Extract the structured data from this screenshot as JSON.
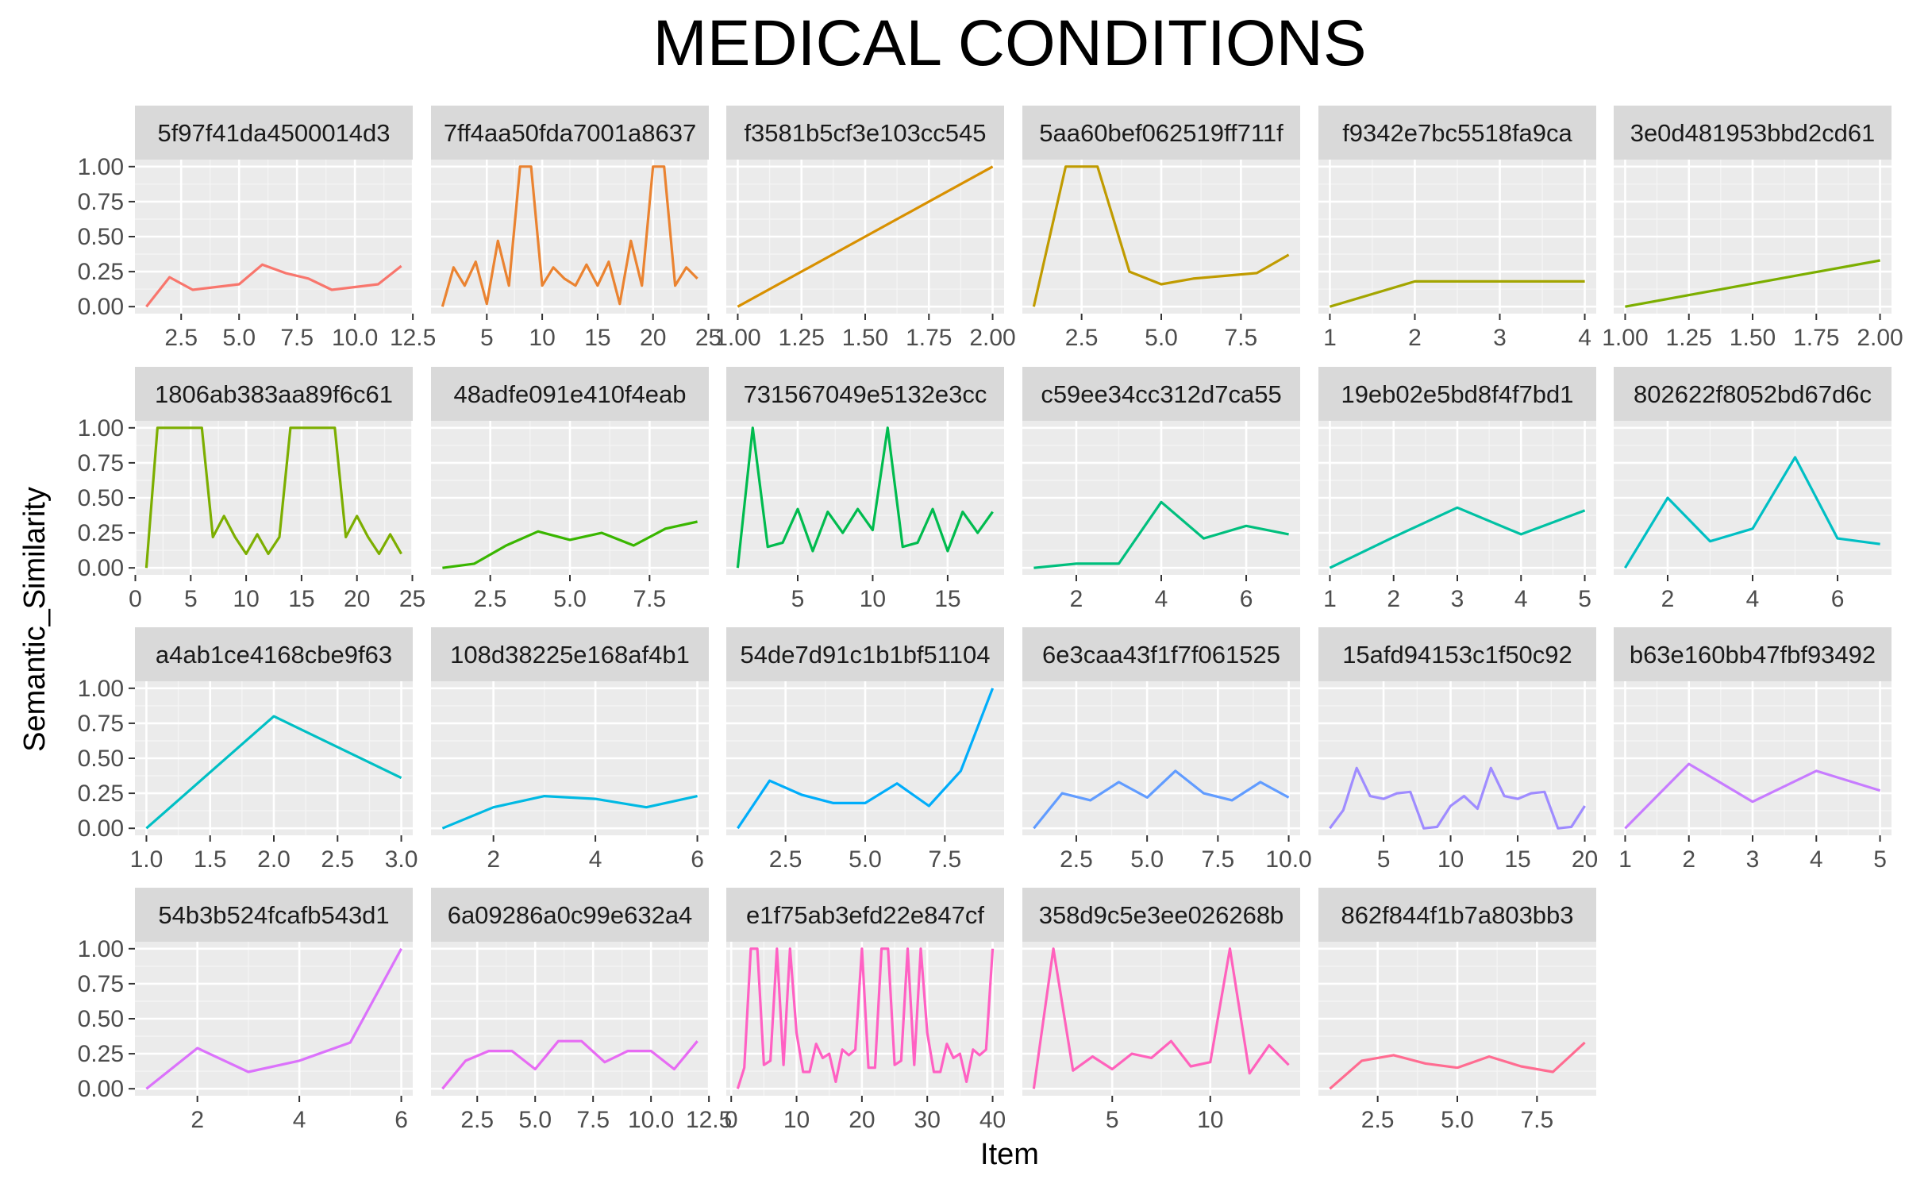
{
  "chart_data": {
    "type": "line",
    "title": "MEDICAL CONDITIONS",
    "xlabel": "Item",
    "ylabel": "Semantic_Similarity",
    "grid": true,
    "legend": "none",
    "y_ticks": [
      0,
      0.25,
      0.5,
      0.75,
      1.0
    ],
    "y_tick_labels": [
      "0.00",
      "0.25",
      "0.50",
      "0.75",
      "1.00"
    ],
    "ylim": [
      0,
      1.0
    ],
    "panels": [
      {
        "label": "5f97f41da4500014d3",
        "color": "#F8766D",
        "xlim": [
          1,
          12
        ],
        "xticks": [
          2.5,
          5,
          7.5,
          10,
          12.5
        ],
        "xtick_labels": [
          "2.5",
          "5.0",
          "7.5",
          "10.0",
          "12.5"
        ],
        "x": [
          1,
          2,
          3,
          4,
          5,
          6,
          7,
          8,
          9,
          10,
          11,
          12
        ],
        "y": [
          0.0,
          0.21,
          0.12,
          0.14,
          0.16,
          0.3,
          0.24,
          0.2,
          0.12,
          0.14,
          0.16,
          0.29
        ]
      },
      {
        "label": "7ff4aa50fda7001a8637",
        "color": "#EA8331",
        "xlim": [
          1,
          24
        ],
        "xticks": [
          5,
          10,
          15,
          20,
          25
        ],
        "xtick_labels": [
          "5",
          "10",
          "15",
          "20",
          "25"
        ],
        "x": [
          1,
          2,
          3,
          4,
          5,
          6,
          7,
          8,
          9,
          10,
          11,
          12,
          13,
          14,
          15,
          16,
          17,
          18,
          19,
          20,
          21,
          22,
          23,
          24
        ],
        "y": [
          0.0,
          0.28,
          0.15,
          0.32,
          0.02,
          0.47,
          0.15,
          1.0,
          1.0,
          0.15,
          0.28,
          0.2,
          0.15,
          0.3,
          0.15,
          0.32,
          0.02,
          0.47,
          0.15,
          1.0,
          1.0,
          0.15,
          0.28,
          0.2
        ]
      },
      {
        "label": "f3581b5cf3e103cc545",
        "color": "#D89000",
        "xlim": [
          1,
          2
        ],
        "xticks": [
          1,
          1.25,
          1.5,
          1.75,
          2
        ],
        "xtick_labels": [
          "1.00",
          "1.25",
          "1.50",
          "1.75",
          "2.00"
        ],
        "x": [
          1,
          2
        ],
        "y": [
          0.0,
          1.0
        ]
      },
      {
        "label": "5aa60bef062519ff711f",
        "color": "#C09B00",
        "xlim": [
          1,
          9
        ],
        "xticks": [
          2.5,
          5,
          7.5
        ],
        "xtick_labels": [
          "2.5",
          "5.0",
          "7.5"
        ],
        "x": [
          1,
          2,
          3,
          4,
          5,
          6,
          7,
          8,
          9
        ],
        "y": [
          0.0,
          1.0,
          1.0,
          0.25,
          0.16,
          0.2,
          0.22,
          0.24,
          0.37
        ]
      },
      {
        "label": "f9342e7bc5518fa9ca",
        "color": "#A3A500",
        "xlim": [
          1,
          4
        ],
        "xticks": [
          1,
          2,
          3,
          4
        ],
        "xtick_labels": [
          "1",
          "2",
          "3",
          "4"
        ],
        "x": [
          1,
          2,
          3,
          4
        ],
        "y": [
          0.0,
          0.18,
          0.18,
          0.18
        ]
      },
      {
        "label": "3e0d481953bbd2cd61",
        "color": "#7CAE00",
        "xlim": [
          1,
          2
        ],
        "xticks": [
          1,
          1.25,
          1.5,
          1.75,
          2
        ],
        "xtick_labels": [
          "1.00",
          "1.25",
          "1.50",
          "1.75",
          "2.00"
        ],
        "x": [
          1,
          2
        ],
        "y": [
          0.0,
          0.33
        ]
      },
      {
        "label": "1806ab383aa89f6c61",
        "color": "#7CAE00",
        "xlim": [
          1,
          24
        ],
        "xticks": [
          0,
          5,
          10,
          15,
          20,
          25
        ],
        "xtick_labels": [
          "0",
          "5",
          "10",
          "15",
          "20",
          "25"
        ],
        "x": [
          1,
          2,
          3,
          4,
          5,
          6,
          7,
          8,
          9,
          10,
          11,
          12,
          13,
          14,
          15,
          16,
          17,
          18,
          19,
          20,
          21,
          22,
          23,
          24
        ],
        "y": [
          0.0,
          1.0,
          1.0,
          1.0,
          1.0,
          1.0,
          0.22,
          0.37,
          0.22,
          0.1,
          0.24,
          0.1,
          0.22,
          1.0,
          1.0,
          1.0,
          1.0,
          1.0,
          0.22,
          0.37,
          0.22,
          0.1,
          0.24,
          0.1
        ]
      },
      {
        "label": "48adfe091e410f4eab",
        "color": "#39B600",
        "xlim": [
          1,
          9
        ],
        "xticks": [
          2.5,
          5,
          7.5
        ],
        "xtick_labels": [
          "2.5",
          "5.0",
          "7.5"
        ],
        "x": [
          1,
          2,
          3,
          4,
          5,
          6,
          7,
          8,
          9
        ],
        "y": [
          0.0,
          0.03,
          0.16,
          0.26,
          0.2,
          0.25,
          0.16,
          0.28,
          0.33
        ]
      },
      {
        "label": "731567049e5132e3cc",
        "color": "#00BB4E",
        "xlim": [
          1,
          18
        ],
        "xticks": [
          5,
          10,
          15
        ],
        "xtick_labels": [
          "5",
          "10",
          "15"
        ],
        "x": [
          1,
          2,
          3,
          4,
          5,
          6,
          7,
          8,
          9,
          10,
          11,
          12,
          13,
          14,
          15,
          16,
          17,
          18
        ],
        "y": [
          0.0,
          1.0,
          0.15,
          0.18,
          0.42,
          0.12,
          0.4,
          0.25,
          0.42,
          0.27,
          1.0,
          0.15,
          0.18,
          0.42,
          0.12,
          0.4,
          0.25,
          0.4
        ]
      },
      {
        "label": "c59ee34cc312d7ca55",
        "color": "#00BF7D",
        "xlim": [
          1,
          7
        ],
        "xticks": [
          2,
          4,
          6
        ],
        "xtick_labels": [
          "2",
          "4",
          "6"
        ],
        "x": [
          1,
          2,
          3,
          4,
          5,
          6,
          7
        ],
        "y": [
          0.0,
          0.03,
          0.03,
          0.47,
          0.21,
          0.3,
          0.24
        ]
      },
      {
        "label": "19eb02e5bd8f4f7bd1",
        "color": "#00C1A3",
        "xlim": [
          1,
          5
        ],
        "xticks": [
          1,
          2,
          3,
          4,
          5
        ],
        "xtick_labels": [
          "1",
          "2",
          "3",
          "4",
          "5"
        ],
        "x": [
          1,
          2,
          3,
          4,
          5
        ],
        "y": [
          0.0,
          0.22,
          0.43,
          0.24,
          0.41
        ]
      },
      {
        "label": "802622f8052bd67d6c",
        "color": "#00BFC4",
        "xlim": [
          1,
          7
        ],
        "xticks": [
          2,
          4,
          6
        ],
        "xtick_labels": [
          "2",
          "4",
          "6"
        ],
        "x": [
          1,
          2,
          3,
          4,
          5,
          6,
          7
        ],
        "y": [
          0.0,
          0.5,
          0.19,
          0.28,
          0.79,
          0.21,
          0.17
        ]
      },
      {
        "label": "a4ab1ce4168cbe9f63",
        "color": "#00BFC4",
        "xlim": [
          1,
          3
        ],
        "xticks": [
          1,
          1.5,
          2,
          2.5,
          3
        ],
        "xtick_labels": [
          "1.0",
          "1.5",
          "2.0",
          "2.5",
          "3.0"
        ],
        "x": [
          1,
          2,
          3
        ],
        "y": [
          0.0,
          0.8,
          0.36
        ]
      },
      {
        "label": "108d38225e168af4b1",
        "color": "#00B9E3",
        "xlim": [
          1,
          6
        ],
        "xticks": [
          2,
          4,
          6
        ],
        "xtick_labels": [
          "2",
          "4",
          "6"
        ],
        "x": [
          1,
          2,
          3,
          4,
          5,
          6
        ],
        "y": [
          0.0,
          0.15,
          0.23,
          0.21,
          0.15,
          0.23
        ]
      },
      {
        "label": "54de7d91c1b1bf51104",
        "color": "#00ADFA",
        "xlim": [
          1,
          9
        ],
        "xticks": [
          2.5,
          5,
          7.5
        ],
        "xtick_labels": [
          "2.5",
          "5.0",
          "7.5"
        ],
        "x": [
          1,
          2,
          3,
          4,
          5,
          6,
          7,
          8,
          9
        ],
        "y": [
          0.0,
          0.34,
          0.24,
          0.18,
          0.18,
          0.32,
          0.16,
          0.41,
          1.0
        ]
      },
      {
        "label": "6e3caa43f1f7f061525",
        "color": "#619CFF",
        "xlim": [
          1,
          10
        ],
        "xticks": [
          2.5,
          5,
          7.5,
          10
        ],
        "xtick_labels": [
          "2.5",
          "5.0",
          "7.5",
          "10.0"
        ],
        "x": [
          1,
          2,
          3,
          4,
          5,
          6,
          7,
          8,
          9,
          10
        ],
        "y": [
          0.0,
          0.25,
          0.2,
          0.33,
          0.22,
          0.41,
          0.25,
          0.2,
          0.33,
          0.22
        ]
      },
      {
        "label": "15afd94153c1f50c92",
        "color": "#9F8CFF",
        "xlim": [
          1,
          20
        ],
        "xticks": [
          5,
          10,
          15,
          20
        ],
        "xtick_labels": [
          "5",
          "10",
          "15",
          "20"
        ],
        "x": [
          1,
          2,
          3,
          4,
          5,
          6,
          7,
          8,
          9,
          10,
          11,
          12,
          13,
          14,
          15,
          16,
          17,
          18,
          19,
          20
        ],
        "y": [
          0.0,
          0.13,
          0.43,
          0.23,
          0.21,
          0.25,
          0.26,
          0.0,
          0.01,
          0.16,
          0.23,
          0.14,
          0.43,
          0.23,
          0.21,
          0.25,
          0.26,
          0.0,
          0.01,
          0.16
        ]
      },
      {
        "label": "b63e160bb47fbf93492",
        "color": "#C77CFF",
        "xlim": [
          1,
          5
        ],
        "xticks": [
          1,
          2,
          3,
          4,
          5
        ],
        "xtick_labels": [
          "1",
          "2",
          "3",
          "4",
          "5"
        ],
        "x": [
          1,
          2,
          3,
          4,
          5
        ],
        "y": [
          0.0,
          0.46,
          0.19,
          0.41,
          0.27
        ]
      },
      {
        "label": "54b3b524fcafb543d1",
        "color": "#DB72FB",
        "xlim": [
          1,
          6
        ],
        "xticks": [
          2,
          4,
          6
        ],
        "xtick_labels": [
          "2",
          "4",
          "6"
        ],
        "x": [
          1,
          2,
          3,
          4,
          5,
          6
        ],
        "y": [
          0.0,
          0.29,
          0.12,
          0.2,
          0.33,
          1.0
        ]
      },
      {
        "label": "6a09286a0c99e632a4",
        "color": "#E76BF3",
        "xlim": [
          1,
          12
        ],
        "xticks": [
          2.5,
          5,
          7.5,
          10,
          12.5
        ],
        "xtick_labels": [
          "2.5",
          "5.0",
          "7.5",
          "10.0",
          "12.5"
        ],
        "x": [
          1,
          2,
          3,
          4,
          5,
          6,
          7,
          8,
          9,
          10,
          11,
          12
        ],
        "y": [
          0.0,
          0.2,
          0.27,
          0.27,
          0.14,
          0.34,
          0.34,
          0.19,
          0.27,
          0.27,
          0.14,
          0.34
        ]
      },
      {
        "label": "e1f75ab3efd22e847cf",
        "color": "#FF61C3",
        "xlim": [
          1,
          40
        ],
        "xticks": [
          0,
          10,
          20,
          30,
          40
        ],
        "xtick_labels": [
          "0",
          "10",
          "20",
          "30",
          "40"
        ],
        "x": [
          1,
          2,
          3,
          4,
          5,
          6,
          7,
          8,
          9,
          10,
          11,
          12,
          13,
          14,
          15,
          16,
          17,
          18,
          19,
          20,
          21,
          22,
          23,
          24,
          25,
          26,
          27,
          28,
          29,
          30,
          31,
          32,
          33,
          34,
          35,
          36,
          37,
          38,
          39,
          40
        ],
        "y": [
          0.0,
          0.15,
          1.0,
          1.0,
          0.17,
          0.2,
          1.0,
          0.17,
          1.0,
          0.4,
          0.12,
          0.12,
          0.32,
          0.22,
          0.25,
          0.05,
          0.28,
          0.24,
          0.28,
          1.0,
          0.15,
          0.15,
          1.0,
          1.0,
          0.17,
          0.2,
          1.0,
          0.17,
          1.0,
          0.4,
          0.12,
          0.12,
          0.32,
          0.22,
          0.25,
          0.05,
          0.28,
          0.24,
          0.28,
          1.0
        ]
      },
      {
        "label": "358d9c5e3ee026268b",
        "color": "#FF62BC",
        "xlim": [
          1,
          14
        ],
        "xticks": [
          5,
          10
        ],
        "xtick_labels": [
          "5",
          "10"
        ],
        "x": [
          1,
          2,
          3,
          4,
          5,
          6,
          7,
          8,
          9,
          10,
          11,
          12,
          13,
          14
        ],
        "y": [
          0.0,
          1.0,
          0.13,
          0.23,
          0.14,
          0.25,
          0.22,
          0.34,
          0.16,
          0.19,
          1.0,
          0.11,
          0.31,
          0.17
        ]
      },
      {
        "label": "862f844f1b7a803bb3",
        "color": "#FF6C91",
        "xlim": [
          1,
          9
        ],
        "xticks": [
          2.5,
          5,
          7.5
        ],
        "xtick_labels": [
          "2.5",
          "5.0",
          "7.5"
        ],
        "x": [
          1,
          2,
          3,
          4,
          5,
          6,
          7,
          8,
          9
        ],
        "y": [
          0.0,
          0.2,
          0.24,
          0.18,
          0.15,
          0.23,
          0.16,
          0.12,
          0.33
        ]
      }
    ]
  }
}
